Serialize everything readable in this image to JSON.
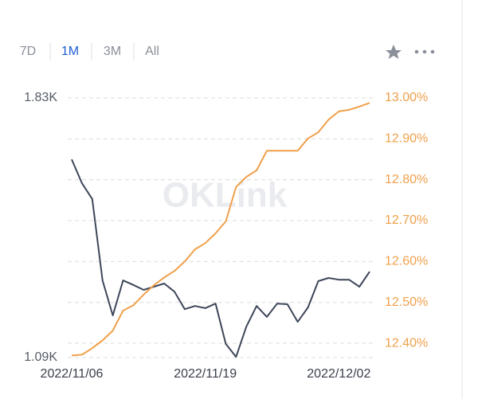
{
  "tabs": [
    "7D",
    "1M",
    "3M",
    "All"
  ],
  "selected_tab": 1,
  "chart_data": {
    "type": "line",
    "watermark": "OKLink",
    "categories": [
      "2022/11/06",
      null,
      null,
      null,
      null,
      null,
      null,
      null,
      null,
      null,
      null,
      null,
      null,
      "2022/11/19",
      null,
      null,
      null,
      null,
      null,
      null,
      null,
      null,
      null,
      null,
      null,
      null,
      "2022/12/02",
      null,
      null,
      null
    ],
    "series": [
      {
        "color": "#3d4659",
        "values": [
          1655,
          1587,
          1542,
          1310,
          1210,
          1310,
          1297,
          1283,
          1292,
          1301,
          1278,
          1228,
          1237,
          1231,
          1244,
          1129,
          1092,
          1178,
          1237,
          1206,
          1244,
          1242,
          1192,
          1233,
          1308,
          1317,
          1312,
          1312,
          1292,
          1335
        ]
      },
      {
        "color": "#f0a04b",
        "axis": "y2",
        "values": [
          12.37,
          12.372,
          12.388,
          12.407,
          12.431,
          12.48,
          12.493,
          12.519,
          12.542,
          12.561,
          12.577,
          12.6,
          12.63,
          12.645,
          12.669,
          12.698,
          12.782,
          12.807,
          12.823,
          12.871,
          12.871,
          12.871,
          12.871,
          12.901,
          12.916,
          12.947,
          12.967,
          12.971,
          12.979,
          12.988
        ]
      }
    ],
    "ylim": [
      1090,
      1830
    ],
    "yticks": [
      {
        "value": 1830,
        "label": "1.83K"
      },
      {
        "value": 1090,
        "label": "1.09K"
      }
    ],
    "y2lim": [
      12.365,
      13.0
    ],
    "y2ticks": [
      {
        "value": 13.0,
        "label": "13.00%"
      },
      {
        "value": 12.9,
        "label": "12.90%"
      },
      {
        "value": 12.8,
        "label": "12.80%"
      },
      {
        "value": 12.7,
        "label": "12.70%"
      },
      {
        "value": 12.6,
        "label": "12.60%"
      },
      {
        "value": 12.5,
        "label": "12.50%"
      },
      {
        "value": 12.4,
        "label": "12.40%"
      }
    ],
    "grid": true
  }
}
